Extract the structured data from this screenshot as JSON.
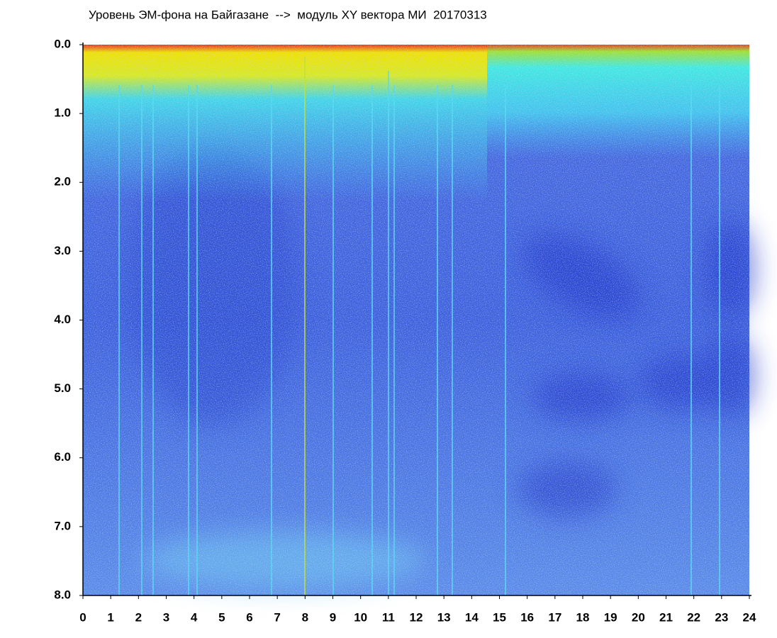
{
  "chart_data": {
    "type": "spectrogram",
    "title": "Уровень ЭМ-фона на Байгазане  -->  модуль XY вектора МИ  20170313",
    "xlim": [
      0,
      24
    ],
    "xticks": [
      0,
      1,
      2,
      3,
      4,
      5,
      6,
      7,
      8,
      9,
      10,
      11,
      12,
      13,
      14,
      15,
      16,
      17,
      18,
      19,
      20,
      21,
      22,
      23,
      24
    ],
    "ylim": [
      8,
      0
    ],
    "yticks": [
      {
        "value": 0,
        "label": "0.0"
      },
      {
        "value": 1,
        "label": "1.0"
      },
      {
        "value": 2,
        "label": "2.0"
      },
      {
        "value": 3,
        "label": "3.0"
      },
      {
        "value": 4,
        "label": "4.0"
      },
      {
        "value": 5,
        "label": "5.0"
      },
      {
        "value": 6,
        "label": "6.0"
      },
      {
        "value": 7,
        "label": "7.0"
      },
      {
        "value": 8,
        "label": "8.0"
      }
    ]
  }
}
